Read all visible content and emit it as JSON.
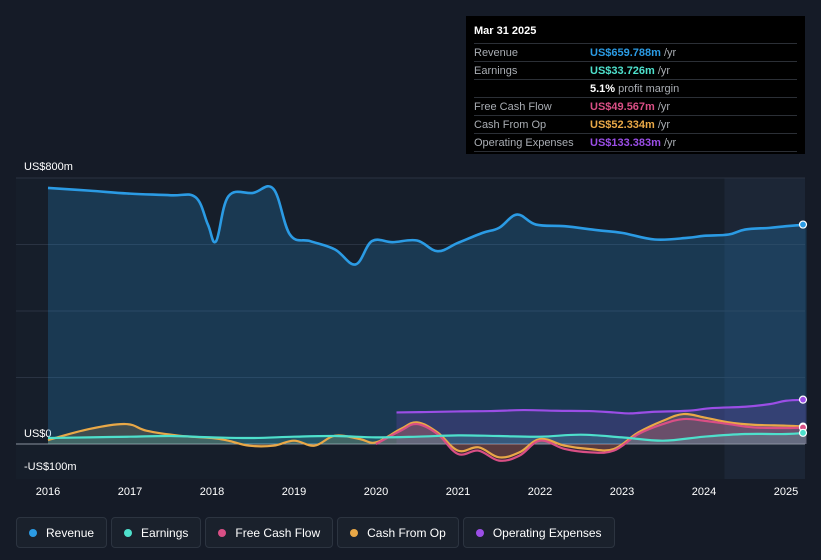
{
  "chart_data": {
    "type": "area",
    "y_axis_labels": {
      "top": "US$800m",
      "zero": "US$0",
      "bottom": "-US$100m"
    },
    "ylim": [
      -100,
      800
    ],
    "x_ticks": [
      "2016",
      "2017",
      "2018",
      "2019",
      "2020",
      "2021",
      "2022",
      "2023",
      "2024",
      "2025"
    ],
    "series": [
      {
        "name": "Revenue",
        "color": "#2b9be4",
        "points": [
          [
            2016.0,
            770
          ],
          [
            2016.5,
            762
          ],
          [
            2017.0,
            753
          ],
          [
            2017.5,
            748
          ],
          [
            2017.8,
            742
          ],
          [
            2017.95,
            660
          ],
          [
            2018.05,
            610
          ],
          [
            2018.2,
            745
          ],
          [
            2018.5,
            755
          ],
          [
            2018.75,
            767
          ],
          [
            2018.95,
            630
          ],
          [
            2019.2,
            610
          ],
          [
            2019.5,
            585
          ],
          [
            2019.75,
            540
          ],
          [
            2019.95,
            610
          ],
          [
            2020.2,
            607
          ],
          [
            2020.5,
            612
          ],
          [
            2020.75,
            580
          ],
          [
            2021.0,
            605
          ],
          [
            2021.3,
            635
          ],
          [
            2021.5,
            650
          ],
          [
            2021.72,
            690
          ],
          [
            2021.95,
            660
          ],
          [
            2022.3,
            655
          ],
          [
            2022.7,
            643
          ],
          [
            2023.0,
            635
          ],
          [
            2023.4,
            615
          ],
          [
            2023.8,
            620
          ],
          [
            2024.0,
            626
          ],
          [
            2024.3,
            630
          ],
          [
            2024.5,
            645
          ],
          [
            2024.8,
            650
          ],
          [
            2025.0,
            655
          ],
          [
            2025.25,
            660
          ]
        ]
      },
      {
        "name": "Earnings",
        "color": "#4ee0cc",
        "points": [
          [
            2016.0,
            18
          ],
          [
            2016.5,
            20
          ],
          [
            2017.0,
            22
          ],
          [
            2017.5,
            24
          ],
          [
            2018.0,
            20
          ],
          [
            2018.5,
            18
          ],
          [
            2019.0,
            22
          ],
          [
            2019.5,
            24
          ],
          [
            2020.0,
            20
          ],
          [
            2020.5,
            22
          ],
          [
            2021.0,
            26
          ],
          [
            2021.5,
            24
          ],
          [
            2022.0,
            22
          ],
          [
            2022.5,
            28
          ],
          [
            2023.0,
            20
          ],
          [
            2023.5,
            10
          ],
          [
            2024.0,
            22
          ],
          [
            2024.5,
            30
          ],
          [
            2025.0,
            30
          ],
          [
            2025.25,
            33.7
          ]
        ]
      },
      {
        "name": "Free Cash Flow",
        "color": "#d94f85",
        "points": [
          [
            2020.0,
            0
          ],
          [
            2020.3,
            40
          ],
          [
            2020.5,
            60
          ],
          [
            2020.75,
            30
          ],
          [
            2021.0,
            -30
          ],
          [
            2021.25,
            -20
          ],
          [
            2021.5,
            -50
          ],
          [
            2021.75,
            -35
          ],
          [
            2022.0,
            10
          ],
          [
            2022.3,
            -15
          ],
          [
            2022.6,
            -25
          ],
          [
            2022.9,
            -20
          ],
          [
            2023.2,
            30
          ],
          [
            2023.5,
            60
          ],
          [
            2023.75,
            75
          ],
          [
            2024.0,
            70
          ],
          [
            2024.3,
            60
          ],
          [
            2024.6,
            50
          ],
          [
            2025.0,
            48
          ],
          [
            2025.25,
            49.6
          ]
        ]
      },
      {
        "name": "Cash From Op",
        "color": "#e9a847",
        "points": [
          [
            2016.0,
            12
          ],
          [
            2016.5,
            45
          ],
          [
            2016.95,
            60
          ],
          [
            2017.2,
            40
          ],
          [
            2017.6,
            25
          ],
          [
            2018.0,
            18
          ],
          [
            2018.2,
            10
          ],
          [
            2018.45,
            -5
          ],
          [
            2018.75,
            -5
          ],
          [
            2019.0,
            10
          ],
          [
            2019.25,
            -5
          ],
          [
            2019.5,
            25
          ],
          [
            2019.8,
            15
          ],
          [
            2020.0,
            5
          ],
          [
            2020.3,
            45
          ],
          [
            2020.5,
            65
          ],
          [
            2020.75,
            35
          ],
          [
            2021.0,
            -20
          ],
          [
            2021.25,
            -10
          ],
          [
            2021.5,
            -40
          ],
          [
            2021.75,
            -25
          ],
          [
            2022.0,
            15
          ],
          [
            2022.3,
            -5
          ],
          [
            2022.6,
            -15
          ],
          [
            2022.9,
            -15
          ],
          [
            2023.2,
            35
          ],
          [
            2023.5,
            70
          ],
          [
            2023.75,
            90
          ],
          [
            2024.0,
            80
          ],
          [
            2024.3,
            65
          ],
          [
            2024.6,
            58
          ],
          [
            2025.0,
            55
          ],
          [
            2025.25,
            52.3
          ]
        ]
      },
      {
        "name": "Operating Expenses",
        "color": "#9b4ee6",
        "points": [
          [
            2020.25,
            95
          ],
          [
            2020.6,
            96
          ],
          [
            2021.0,
            98
          ],
          [
            2021.4,
            99
          ],
          [
            2021.8,
            102
          ],
          [
            2022.2,
            100
          ],
          [
            2022.6,
            99
          ],
          [
            2022.9,
            95
          ],
          [
            2023.1,
            92
          ],
          [
            2023.4,
            97
          ],
          [
            2023.8,
            100
          ],
          [
            2024.1,
            108
          ],
          [
            2024.5,
            112
          ],
          [
            2024.8,
            120
          ],
          [
            2025.0,
            130
          ],
          [
            2025.25,
            133.4
          ]
        ]
      }
    ],
    "forecast_band_start": 2024.25
  },
  "tooltip": {
    "date": "Mar 31 2025",
    "rows": [
      {
        "label": "Revenue",
        "value": "US$659.788m",
        "unit": "/yr",
        "color": "#2b9be4"
      },
      {
        "label": "Earnings",
        "value": "US$33.726m",
        "unit": "/yr",
        "color": "#4ee0cc"
      },
      {
        "label": "",
        "value": "5.1%",
        "unit": "profit margin",
        "color": "#ffffff"
      },
      {
        "label": "Free Cash Flow",
        "value": "US$49.567m",
        "unit": "/yr",
        "color": "#d94f85"
      },
      {
        "label": "Cash From Op",
        "value": "US$52.334m",
        "unit": "/yr",
        "color": "#e9a847"
      },
      {
        "label": "Operating Expenses",
        "value": "US$133.383m",
        "unit": "/yr",
        "color": "#9b4ee6"
      }
    ]
  },
  "legend": [
    {
      "label": "Revenue",
      "color": "#2b9be4"
    },
    {
      "label": "Earnings",
      "color": "#4ee0cc"
    },
    {
      "label": "Free Cash Flow",
      "color": "#d94f85"
    },
    {
      "label": "Cash From Op",
      "color": "#e9a847"
    },
    {
      "label": "Operating Expenses",
      "color": "#9b4ee6"
    }
  ]
}
